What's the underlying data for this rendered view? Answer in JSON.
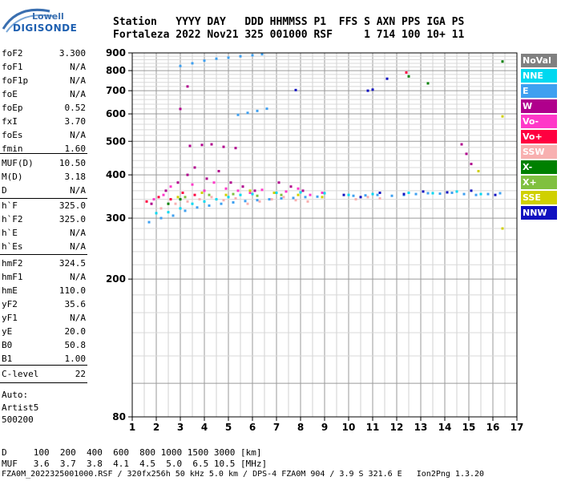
{
  "logo": {
    "line1": "Lowell",
    "line2": "DIGISONDE"
  },
  "header": {
    "labels_line": "Station   YYYY DAY   DDD HHMMSS P1  FFS S AXN PPS IGA PS",
    "values_line": "Fortaleza 2022 Nov21 325 001000 RSF     1 714 100 10+ 11"
  },
  "params": [
    {
      "name": "foF2",
      "value": "3.300"
    },
    {
      "name": "foF1",
      "value": "N/A"
    },
    {
      "name": "foF1p",
      "value": "N/A"
    },
    {
      "name": "foE",
      "value": "N/A"
    },
    {
      "name": "foEp",
      "value": "0.52"
    },
    {
      "name": "fxI",
      "value": "3.70"
    },
    {
      "name": "foEs",
      "value": "N/A"
    },
    {
      "name": "fmin",
      "value": "1.60"
    },
    {
      "name": "MUF(D)",
      "value": "10.50"
    },
    {
      "name": "M(D)",
      "value": "3.18"
    },
    {
      "name": "D",
      "value": "N/A"
    },
    {
      "name": "h`F",
      "value": "325.0"
    },
    {
      "name": "h`F2",
      "value": "325.0"
    },
    {
      "name": "h`E",
      "value": "N/A"
    },
    {
      "name": "h`Es",
      "value": "N/A"
    },
    {
      "name": "hmF2",
      "value": "324.5"
    },
    {
      "name": "hmF1",
      "value": "N/A"
    },
    {
      "name": "hmE",
      "value": "110.0"
    },
    {
      "name": "yF2",
      "value": "35.6"
    },
    {
      "name": "yF1",
      "value": "N/A"
    },
    {
      "name": "yE",
      "value": "20.0"
    },
    {
      "name": "B0",
      "value": "50.8"
    },
    {
      "name": "B1",
      "value": "1.00"
    },
    {
      "name": "C-level",
      "value": "22"
    }
  ],
  "extra": {
    "auto": "Auto:",
    "artist": "Artist5",
    "code": "500200"
  },
  "legend": [
    {
      "label": "NoVal",
      "bg": "#808080",
      "fg": "#ffffff"
    },
    {
      "label": "NNE",
      "bg": "#00d8f0",
      "fg": "#ffffff"
    },
    {
      "label": "E",
      "bg": "#3fa0f0",
      "fg": "#ffffff"
    },
    {
      "label": "W",
      "bg": "#b0008c",
      "fg": "#ffffff"
    },
    {
      "label": "Vo-",
      "bg": "#ff38c8",
      "fg": "#ffffff"
    },
    {
      "label": "Vo+",
      "bg": "#ff0040",
      "fg": "#ffffff"
    },
    {
      "label": "SSW",
      "bg": "#f8b0b0",
      "fg": "#ffffff"
    },
    {
      "label": "X-",
      "bg": "#008000",
      "fg": "#ffffff"
    },
    {
      "label": "X+",
      "bg": "#80c040",
      "fg": "#ffffff"
    },
    {
      "label": "SSE",
      "bg": "#d0d000",
      "fg": "#ffffff"
    },
    {
      "label": "NNW",
      "bg": "#1010c0",
      "fg": "#ffffff"
    }
  ],
  "footer": {
    "d_row": "D     100  200  400  600  800 1000 1500 3000 [km]",
    "muf_row": "MUF   3.6  3.7  3.8  4.1  4.5  5.0  6.5 10.5 [MHz]",
    "file_row": "FZA0M_2022325001000.RSF / 320fx256h 50 kHz 5.0 km / DPS-4 FZA0M 904 / 3.9 S 321.6 E   Ion2Png 1.3.20"
  },
  "chart_data": {
    "type": "scatter",
    "title": "",
    "xlabel": "",
    "ylabel": "",
    "xlim": [
      1,
      17
    ],
    "ylim": [
      80,
      900
    ],
    "y_scale": "log",
    "grid": true,
    "x_ticks": [
      1,
      2,
      3,
      4,
      5,
      6,
      7,
      8,
      9,
      10,
      11,
      12,
      13,
      14,
      15,
      16,
      17
    ],
    "y_ticks": [
      80,
      200,
      300,
      400,
      500,
      600,
      700,
      800,
      900
    ],
    "series": [
      {
        "name": "E",
        "color": "#3fa0f0",
        "x": [
          1.7,
          2.2,
          2.7,
          3.2,
          3.7,
          4.2,
          4.7,
          5.2,
          5.7,
          6.2,
          6.7,
          7.2,
          7.7,
          8.2,
          8.7,
          10.2,
          10.7,
          11.2,
          11.8,
          12.3,
          12.8,
          13.3,
          13.8,
          14.3,
          14.8,
          15.3,
          15.8,
          16.3,
          3.0,
          3.5,
          4.0,
          4.5,
          5.0,
          5.5,
          6.0,
          6.4,
          5.4,
          5.8,
          6.2,
          6.6
        ],
        "y": [
          292,
          300,
          305,
          315,
          322,
          326,
          330,
          333,
          336,
          338,
          340,
          342,
          343,
          345,
          346,
          348,
          349,
          350,
          348,
          350,
          352,
          354,
          353,
          355,
          352,
          350,
          352,
          354,
          825,
          840,
          855,
          866,
          872,
          880,
          886,
          892,
          596,
          604,
          612,
          621
        ]
      },
      {
        "name": "NNE",
        "color": "#00d8f0",
        "x": [
          2.0,
          2.5,
          3.0,
          3.5,
          4.0,
          4.5,
          5.0,
          5.5,
          6.0,
          7.0,
          8.0,
          9.0,
          10.0,
          11.0,
          12.5,
          13.5,
          14.5,
          15.5
        ],
        "y": [
          310,
          312,
          320,
          330,
          335,
          340,
          345,
          350,
          352,
          355,
          356,
          354,
          350,
          352,
          355,
          354,
          358,
          352
        ]
      },
      {
        "name": "W",
        "color": "#b0008c",
        "x": [
          1.8,
          2.4,
          2.9,
          3.3,
          3.6,
          4.1,
          4.6,
          5.1,
          5.6,
          6.1,
          7.1,
          7.6,
          8.1,
          3.4,
          3.9,
          4.3,
          4.8,
          5.3,
          14.7,
          14.9,
          15.1,
          3.0,
          3.3
        ],
        "y": [
          330,
          360,
          380,
          400,
          420,
          390,
          410,
          380,
          370,
          360,
          380,
          370,
          360,
          485,
          488,
          490,
          482,
          478,
          490,
          460,
          430,
          620,
          720
        ]
      },
      {
        "name": "Vo-",
        "color": "#ff38c8",
        "x": [
          1.9,
          2.3,
          2.6,
          3.1,
          3.5,
          4.0,
          4.4,
          4.9,
          5.4,
          5.9,
          6.4,
          7.4,
          7.9,
          8.4,
          8.9
        ],
        "y": [
          340,
          350,
          370,
          355,
          375,
          360,
          380,
          365,
          360,
          355,
          362,
          358,
          365,
          350,
          355
        ]
      },
      {
        "name": "Vo+",
        "color": "#ff0040",
        "x": [
          1.6,
          2.1,
          2.6,
          3.1,
          3.6,
          12.4
        ],
        "y": [
          335,
          345,
          340,
          355,
          350,
          790
        ]
      },
      {
        "name": "SSW",
        "color": "#f8b0b0",
        "x": [
          2.2,
          2.8,
          3.3,
          3.8,
          4.3,
          4.8,
          5.3,
          5.8,
          6.3,
          6.8,
          7.3,
          7.8,
          8.3,
          10.3,
          10.8,
          11.3
        ],
        "y": [
          320,
          330,
          335,
          340,
          345,
          338,
          342,
          330,
          335,
          340,
          345,
          338,
          335,
          340,
          345,
          342
        ]
      },
      {
        "name": "X-",
        "color": "#008000",
        "x": [
          2.5,
          3.0,
          12.5,
          13.3,
          16.4
        ],
        "y": [
          330,
          340,
          770,
          735,
          850
        ]
      },
      {
        "name": "X+",
        "color": "#80c040",
        "x": [
          3.2,
          4.2,
          5.2,
          6.2,
          7.2
        ],
        "y": [
          345,
          350,
          352,
          348,
          350
        ]
      },
      {
        "name": "SSE",
        "color": "#d0d000",
        "x": [
          2.9,
          3.9,
          4.9,
          5.9,
          6.9,
          7.9,
          8.9,
          15.4,
          16.4,
          16.4
        ],
        "y": [
          345,
          355,
          350,
          360,
          355,
          350,
          345,
          410,
          590,
          280
        ]
      },
      {
        "name": "NNW",
        "color": "#1010c0",
        "x": [
          9.8,
          10.5,
          11.3,
          12.3,
          13.1,
          14.1,
          15.1,
          16.1,
          7.8,
          10.8,
          11.0,
          11.6
        ],
        "y": [
          350,
          345,
          355,
          352,
          358,
          356,
          360,
          350,
          703,
          700,
          705,
          758
        ]
      }
    ]
  }
}
